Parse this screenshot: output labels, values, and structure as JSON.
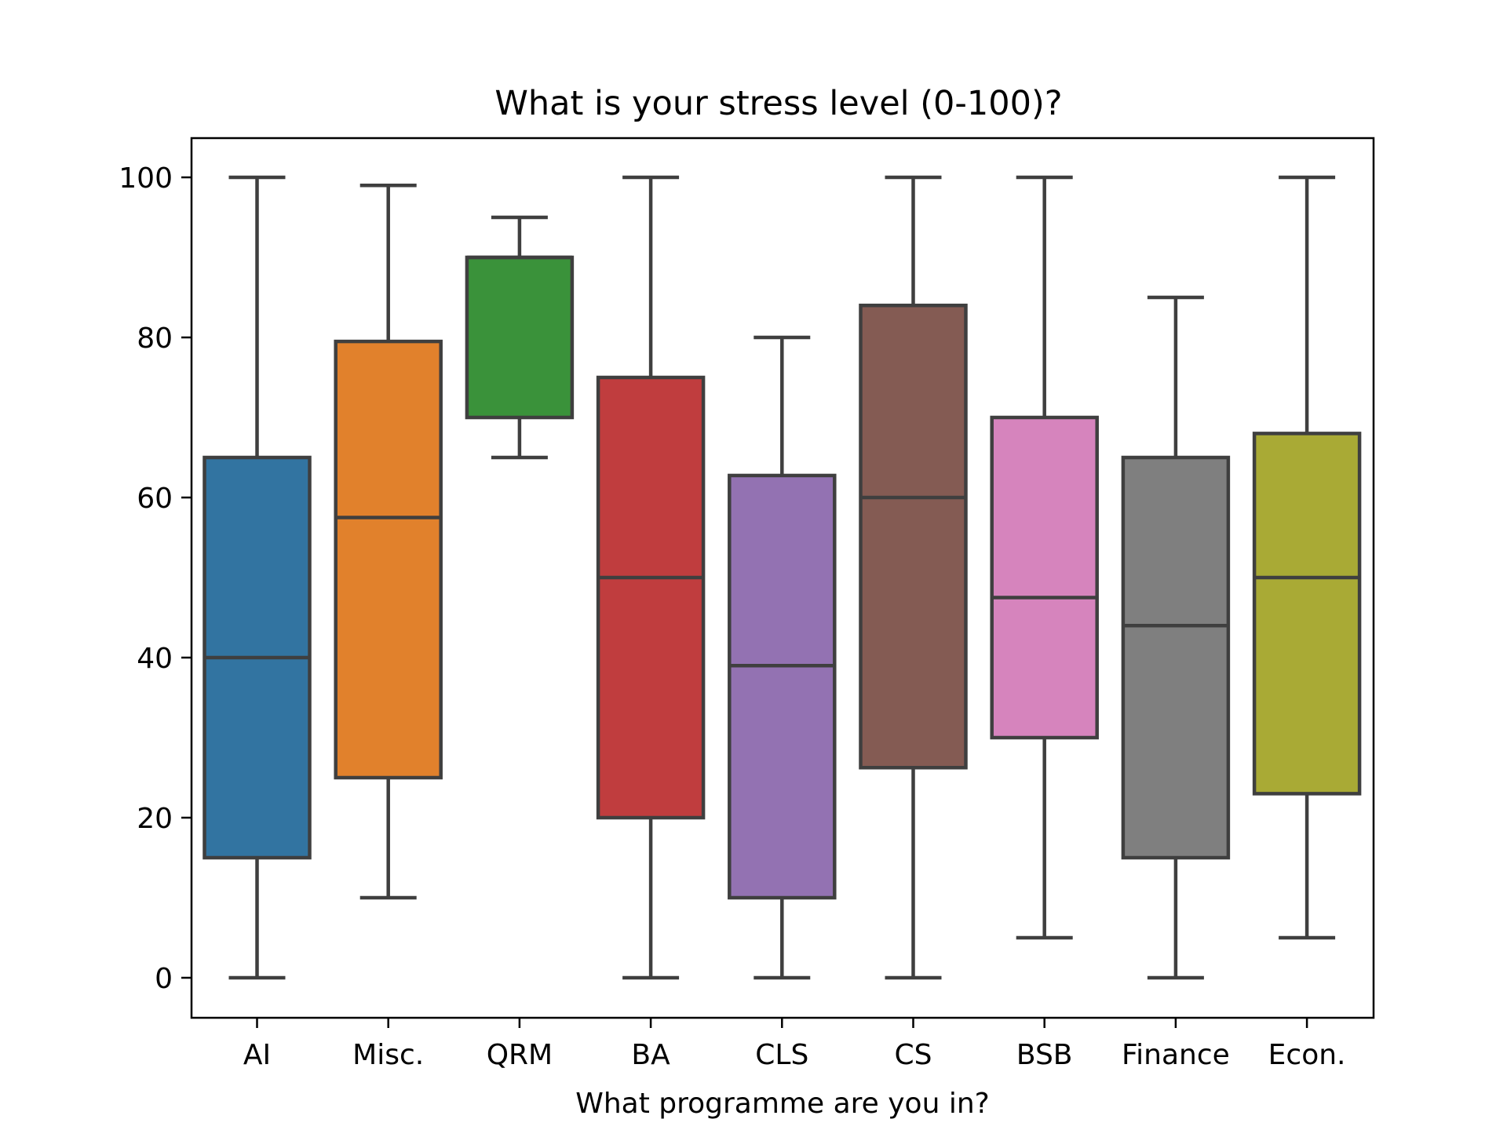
{
  "chart_data": {
    "type": "box",
    "title": "What is your stress level (0-100)?",
    "xlabel": "What programme are you in?",
    "ylabel": "",
    "ylim": [
      -5,
      105
    ],
    "yticks": [
      0,
      20,
      40,
      60,
      80,
      100
    ],
    "grid": false,
    "legend": "none",
    "categories": [
      "AI",
      "Misc.",
      "QRM",
      "BA",
      "CLS",
      "CS",
      "BSB",
      "Finance",
      "Econ."
    ],
    "boxes": [
      {
        "category": "AI",
        "color": "#3274a1",
        "whisker_low": 0,
        "q1": 15,
        "median": 40,
        "q3": 65,
        "whisker_high": 100
      },
      {
        "category": "Misc.",
        "color": "#e1812c",
        "whisker_low": 10,
        "q1": 25,
        "median": 57.5,
        "q3": 79.5,
        "whisker_high": 99
      },
      {
        "category": "QRM",
        "color": "#3a923a",
        "whisker_low": 65,
        "q1": 70,
        "median": 90,
        "q3": 90,
        "whisker_high": 95
      },
      {
        "category": "BA",
        "color": "#c03d3e",
        "whisker_low": 0,
        "q1": 20,
        "median": 50,
        "q3": 75,
        "whisker_high": 100
      },
      {
        "category": "CLS",
        "color": "#9372b2",
        "whisker_low": 0,
        "q1": 10,
        "median": 39,
        "q3": 62.75,
        "whisker_high": 80
      },
      {
        "category": "CS",
        "color": "#845b53",
        "whisker_low": 0,
        "q1": 26.25,
        "median": 60,
        "q3": 84,
        "whisker_high": 100
      },
      {
        "category": "BSB",
        "color": "#d684bd",
        "whisker_low": 5,
        "q1": 30,
        "median": 47.5,
        "q3": 70,
        "whisker_high": 100
      },
      {
        "category": "Finance",
        "color": "#7f7f7f",
        "whisker_low": 0,
        "q1": 15,
        "median": 44,
        "q3": 65,
        "whisker_high": 85
      },
      {
        "category": "Econ.",
        "color": "#a9aa35",
        "whisker_low": 5,
        "q1": 23,
        "median": 50,
        "q3": 68,
        "whisker_high": 100
      }
    ],
    "line_color": "#3f3f3f"
  }
}
